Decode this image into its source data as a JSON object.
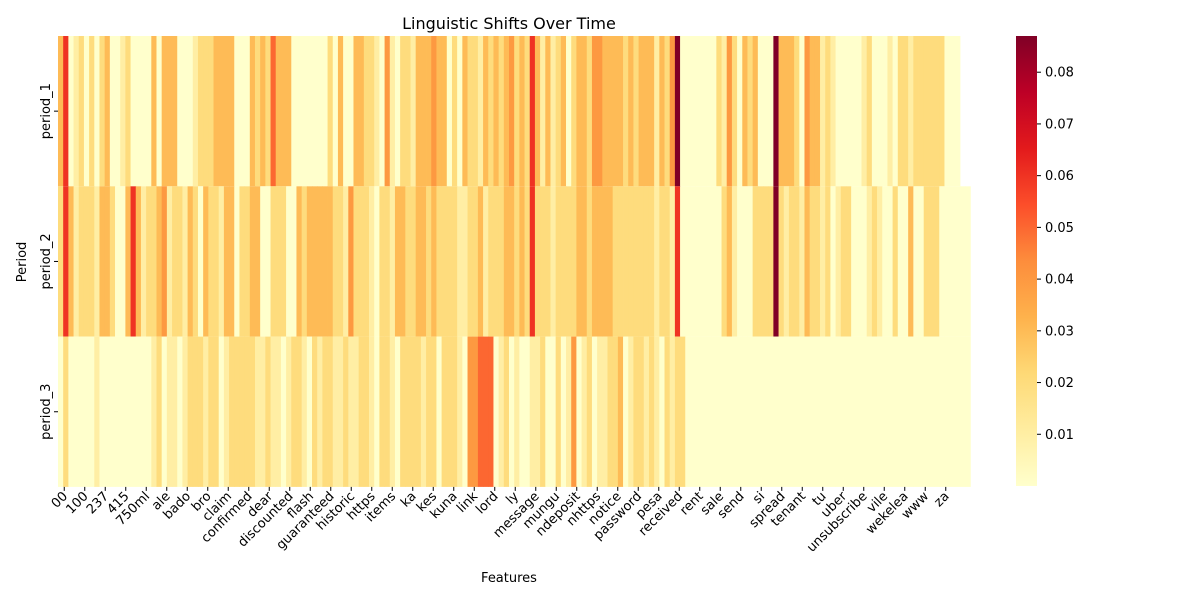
{
  "chart_data": {
    "type": "heatmap",
    "title": "Linguistic Shifts Over Time",
    "xlabel": "Features",
    "ylabel": "Period",
    "rows": [
      "period_1",
      "period_2",
      "period_3"
    ],
    "x_tick_labels": [
      "00",
      "100",
      "237",
      "415",
      "750ml",
      "ale",
      "bado",
      "bro",
      "claim",
      "confirmed",
      "dear",
      "discounted",
      "flash",
      "guaranteed",
      "historic",
      "https",
      "items",
      "ka",
      "kes",
      "kuna",
      "link",
      "lord",
      "ly",
      "message",
      "mungu",
      "ndeposit",
      "nhttps",
      "notice",
      "password",
      "pesa",
      "received",
      "rent",
      "sale",
      "send",
      "si",
      "spread",
      "tenant",
      "tu",
      "uber",
      "unsubscribe",
      "vile",
      "wekelea",
      "www",
      "za"
    ],
    "colorbar": {
      "colormap": "YlOrRd",
      "vmin": 0.0,
      "vmax": 0.087,
      "ticks": [
        "0.01",
        "0.02",
        "0.03",
        "0.04",
        "0.05",
        "0.06",
        "0.07",
        "0.08"
      ]
    },
    "values": [
      [
        0.03,
        0.06,
        0.0,
        0.01,
        0.02,
        0.0,
        0.02,
        0.0,
        0.02,
        0.03,
        0.0,
        0.0,
        0.01,
        0.02,
        0.0,
        0.0,
        0.0,
        0.0,
        0.03,
        0.0,
        0.03,
        0.03,
        0.03,
        0.0,
        0.0,
        0.0,
        0.01,
        0.02,
        0.02,
        0.02,
        0.03,
        0.03,
        0.03,
        0.03,
        0.0,
        0.0,
        0.0,
        0.03,
        0.02,
        0.03,
        0.02,
        0.05,
        0.03,
        0.03,
        0.03,
        0.0,
        0.0,
        0.0,
        0.0,
        0.0,
        0.0,
        0.0,
        0.02,
        0.0,
        0.03,
        0.0,
        0.0,
        0.03,
        0.03,
        0.02,
        0.02,
        0.01,
        0.0,
        0.04,
        0.01,
        0.0,
        0.02,
        0.02,
        0.01,
        0.03,
        0.03,
        0.03,
        0.04,
        0.03,
        0.03,
        0.0,
        0.02,
        0.0,
        0.03,
        0.02,
        0.02,
        0.01,
        0.03,
        0.02,
        0.03,
        0.02,
        0.03,
        0.04,
        0.02,
        0.03,
        0.02,
        0.06,
        0.03,
        0.01,
        0.03,
        0.01,
        0.02,
        0.03,
        0.0,
        0.02,
        0.03,
        0.03,
        0.02,
        0.04,
        0.04,
        0.03,
        0.03,
        0.03,
        0.03,
        0.02,
        0.03,
        0.02,
        0.03,
        0.03,
        0.03,
        0.01,
        0.03,
        0.02,
        0.04,
        0.087,
        0.0,
        0.0,
        0.0,
        0.0,
        0.0,
        0.0,
        0.0,
        0.02,
        0.01,
        0.04,
        0.02,
        0.0,
        0.03,
        0.02,
        0.03,
        0.0,
        0.0,
        0.0,
        0.087,
        0.03,
        0.03,
        0.03,
        0.02,
        0.0,
        0.04,
        0.03,
        0.03,
        0.01,
        0.02,
        0.01,
        0.0,
        0.0,
        0.0,
        0.0,
        0.0,
        0.01,
        0.02,
        0.0,
        0.0,
        0.0,
        0.01,
        0.0,
        0.02,
        0.02,
        0.01,
        0.02,
        0.02,
        0.02,
        0.02,
        0.02,
        0.02,
        0.0,
        0.0,
        0.0
      ],
      [
        0.02,
        0.06,
        0.03,
        0.01,
        0.02,
        0.02,
        0.02,
        0.01,
        0.03,
        0.03,
        0.02,
        0.0,
        0.0,
        0.03,
        0.06,
        0.03,
        0.01,
        0.02,
        0.02,
        0.03,
        0.04,
        0.01,
        0.02,
        0.02,
        0.01,
        0.03,
        0.02,
        0.0,
        0.03,
        0.02,
        0.02,
        0.01,
        0.03,
        0.03,
        0.0,
        0.02,
        0.02,
        0.03,
        0.03,
        0.0,
        0.0,
        0.02,
        0.02,
        0.02,
        0.0,
        0.0,
        0.03,
        0.02,
        0.03,
        0.03,
        0.03,
        0.03,
        0.03,
        0.02,
        0.02,
        0.01,
        0.04,
        0.02,
        0.02,
        0.02,
        0.01,
        0.0,
        0.02,
        0.02,
        0.01,
        0.03,
        0.03,
        0.02,
        0.02,
        0.03,
        0.03,
        0.02,
        0.03,
        0.02,
        0.02,
        0.02,
        0.02,
        0.01,
        0.01,
        0.02,
        0.02,
        0.03,
        0.01,
        0.02,
        0.02,
        0.02,
        0.03,
        0.03,
        0.02,
        0.03,
        0.02,
        0.06,
        0.02,
        0.02,
        0.02,
        0.01,
        0.02,
        0.02,
        0.02,
        0.02,
        0.03,
        0.03,
        0.02,
        0.03,
        0.03,
        0.03,
        0.03,
        0.02,
        0.02,
        0.02,
        0.02,
        0.02,
        0.02,
        0.02,
        0.02,
        0.01,
        0.02,
        0.02,
        0.01,
        0.06,
        0.0,
        0.0,
        0.0,
        0.0,
        0.0,
        0.0,
        0.0,
        0.0,
        0.02,
        0.03,
        0.01,
        0.0,
        0.0,
        0.0,
        0.02,
        0.02,
        0.02,
        0.02,
        0.087,
        0.02,
        0.01,
        0.02,
        0.02,
        0.01,
        0.03,
        0.02,
        0.02,
        0.01,
        0.02,
        0.0,
        0.01,
        0.02,
        0.02,
        0.0,
        0.0,
        0.0,
        0.01,
        0.02,
        0.01,
        0.0,
        0.0,
        0.02,
        0.0,
        0.0,
        0.03,
        0.0,
        0.0,
        0.02,
        0.02,
        0.02,
        0.0,
        0.0,
        0.0,
        0.0,
        0.0,
        0.0
      ],
      [
        0.0,
        0.02,
        0.0,
        0.0,
        0.0,
        0.0,
        0.0,
        0.01,
        0.0,
        0.0,
        0.0,
        0.0,
        0.0,
        0.0,
        0.0,
        0.0,
        0.0,
        0.0,
        0.01,
        0.02,
        0.0,
        0.01,
        0.01,
        0.0,
        0.01,
        0.02,
        0.02,
        0.02,
        0.01,
        0.02,
        0.02,
        0.0,
        0.01,
        0.02,
        0.02,
        0.02,
        0.02,
        0.02,
        0.01,
        0.01,
        0.02,
        0.01,
        0.01,
        0.0,
        0.01,
        0.02,
        0.02,
        0.01,
        0.0,
        0.02,
        0.01,
        0.02,
        0.02,
        0.01,
        0.01,
        0.02,
        0.01,
        0.01,
        0.02,
        0.02,
        0.01,
        0.0,
        0.02,
        0.02,
        0.01,
        0.0,
        0.02,
        0.02,
        0.02,
        0.02,
        0.01,
        0.02,
        0.02,
        0.0,
        0.02,
        0.02,
        0.02,
        0.01,
        0.0,
        0.04,
        0.04,
        0.05,
        0.05,
        0.05,
        0.0,
        0.01,
        0.02,
        0.0,
        0.01,
        0.0,
        0.0,
        0.01,
        0.01,
        0.02,
        0.0,
        0.0,
        0.02,
        0.0,
        0.01,
        0.04,
        0.0,
        0.01,
        0.02,
        0.0,
        0.01,
        0.01,
        0.02,
        0.02,
        0.03,
        0.0,
        0.01,
        0.02,
        0.02,
        0.01,
        0.02,
        0.01,
        0.0,
        0.02,
        0.01,
        0.02,
        0.02,
        0.0,
        0.0,
        0.0,
        0.0,
        0.0,
        0.0,
        0.0,
        0.0,
        0.0,
        0.0,
        0.0,
        0.0,
        0.0,
        0.0,
        0.0,
        0.0,
        0.0,
        0.0,
        0.0,
        0.0,
        0.0,
        0.0,
        0.0,
        0.0,
        0.0,
        0.0,
        0.0,
        0.0,
        0.0,
        0.0,
        0.0,
        0.0,
        0.0,
        0.0,
        0.0,
        0.0,
        0.0,
        0.0,
        0.0,
        0.0,
        0.0,
        0.0,
        0.0,
        0.0,
        0.0,
        0.0,
        0.0,
        0.0,
        0.0,
        0.0,
        0.0,
        0.0,
        0.0,
        0.0,
        0.0
      ]
    ]
  }
}
